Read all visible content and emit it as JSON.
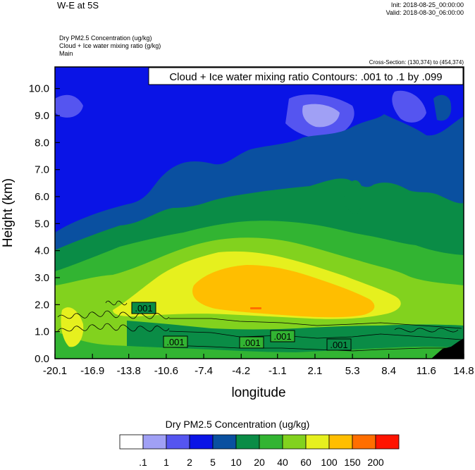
{
  "header": {
    "title": "W-E at 5S",
    "init": "Init: 2018-08-25_00:00:00",
    "valid": "Valid: 2018-08-30_06:00:00",
    "fields": [
      "Dry PM2.5 Concentration   (ug/kg)",
      "Cloud + Ice water mixing ratio   (g/kg)",
      "Main"
    ],
    "cross_section": "Cross-Section: (130,374) to (454,374)"
  },
  "chart_data": {
    "type": "heatmap",
    "contour_label": "Cloud + Ice water mixing ratio Contours: .001 to .1 by .099",
    "xlabel": "longitude",
    "ylabel": "Height (km)",
    "xlim": [
      -20.1,
      14.8
    ],
    "ylim": [
      0,
      10.8
    ],
    "xticks": [
      "-20.1",
      "-16.9",
      "-13.8",
      "-10.6",
      "-7.4",
      "-4.2",
      "-1.1",
      "2.1",
      "5.3",
      "8.4",
      "11.6",
      "14.8"
    ],
    "yticks": [
      "0.0",
      "1.0",
      "2.0",
      "3.0",
      "4.0",
      "5.0",
      "6.0",
      "7.0",
      "8.0",
      "9.0",
      "10.0"
    ],
    "colorbar": {
      "title": "Dry PM2.5 Concentration  (ug/kg)",
      "levels": [
        ".1",
        "1",
        "2",
        "5",
        "10",
        "20",
        "40",
        "60",
        "100",
        "150",
        "200"
      ],
      "colors": [
        "#ffffff",
        "#a0a0f5",
        "#5555f0",
        "#0a14e6",
        "#0a50a0",
        "#0a8c46",
        "#32b432",
        "#82d21e",
        "#e6f01e",
        "#ffbe00",
        "#ff6e00",
        "#ff1400"
      ]
    },
    "contour_labels": [
      ".001",
      ".001",
      ".001",
      ".001",
      ".001"
    ]
  }
}
